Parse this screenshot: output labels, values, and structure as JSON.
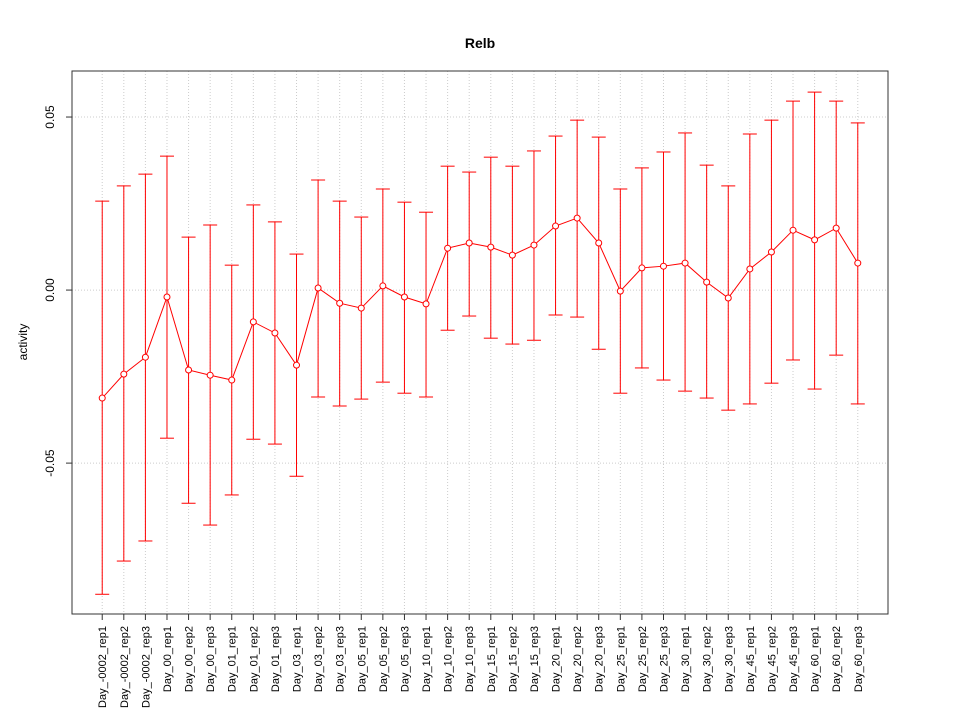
{
  "chart_data": {
    "type": "line",
    "title": "Relb",
    "xlabel": "",
    "ylabel": "activity",
    "ylim": [
      -0.0936,
      0.0633
    ],
    "yticks": [
      -0.05,
      0.0,
      0.05
    ],
    "ytick_labels": [
      "-0.05",
      "0.00",
      "0.05"
    ],
    "grid": true,
    "color": "#ff0000",
    "categories": [
      "Day_-0002_rep1",
      "Day_-0002_rep2",
      "Day_-0002_rep3",
      "Day_00_rep1",
      "Day_00_rep2",
      "Day_00_rep3",
      "Day_01_rep1",
      "Day_01_rep2",
      "Day_01_rep3",
      "Day_03_rep1",
      "Day_03_rep2",
      "Day_03_rep3",
      "Day_05_rep1",
      "Day_05_rep2",
      "Day_05_rep3",
      "Day_10_rep1",
      "Day_10_rep2",
      "Day_10_rep3",
      "Day_15_rep1",
      "Day_15_rep2",
      "Day_15_rep3",
      "Day_20_rep1",
      "Day_20_rep2",
      "Day_20_rep3",
      "Day_25_rep1",
      "Day_25_rep2",
      "Day_25_rep3",
      "Day_30_rep1",
      "Day_30_rep2",
      "Day_30_rep3",
      "Day_45_rep1",
      "Day_45_rep2",
      "Day_45_rep3",
      "Day_60_rep1",
      "Day_60_rep2",
      "Day_60_rep3"
    ],
    "values": [
      -0.0312,
      -0.0243,
      -0.0194,
      -0.002,
      -0.0231,
      -0.0246,
      -0.026,
      -0.0092,
      -0.0124,
      -0.0217,
      0.0006,
      -0.0038,
      -0.0052,
      0.0012,
      -0.002,
      -0.004,
      0.0121,
      0.0136,
      0.0124,
      0.0101,
      0.013,
      0.0185,
      0.0208,
      0.0136,
      -0.0003,
      0.0064,
      0.0069,
      0.0078,
      0.0023,
      -0.0023,
      0.0061,
      0.011,
      0.0173,
      0.0145,
      0.0179,
      0.0078
    ],
    "upper": [
      0.0257,
      0.0301,
      0.0335,
      0.0387,
      0.0153,
      0.0188,
      0.0072,
      0.0246,
      0.0197,
      0.0104,
      0.0318,
      0.0257,
      0.0211,
      0.0292,
      0.0254,
      0.0225,
      0.0358,
      0.0341,
      0.0384,
      0.0358,
      0.0402,
      0.0445,
      0.0491,
      0.0442,
      0.0292,
      0.0353,
      0.0399,
      0.0454,
      0.0361,
      0.0301,
      0.0451,
      0.0491,
      0.0546,
      0.0572,
      0.0546,
      0.0483
    ],
    "lower": [
      -0.0879,
      -0.0783,
      -0.0725,
      -0.0428,
      -0.0616,
      -0.0679,
      -0.0592,
      -0.0431,
      -0.0445,
      -0.0538,
      -0.0309,
      -0.0335,
      -0.0315,
      -0.0266,
      -0.0298,
      -0.0309,
      -0.0116,
      -0.0075,
      -0.0139,
      -0.0156,
      -0.0145,
      -0.0072,
      -0.0078,
      -0.0171,
      -0.0298,
      -0.0225,
      -0.026,
      -0.0292,
      -0.0312,
      -0.0347,
      -0.0329,
      -0.0269,
      -0.0202,
      -0.0286,
      -0.0188,
      -0.0329
    ]
  }
}
